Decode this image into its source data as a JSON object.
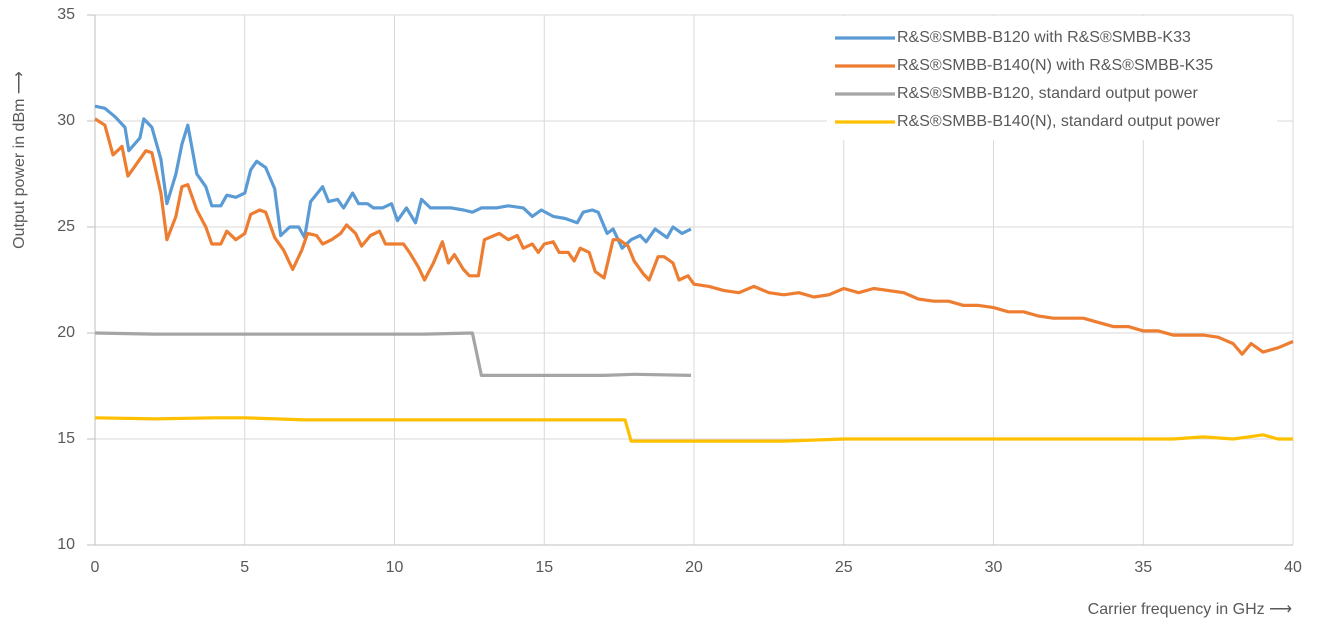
{
  "chart_data": {
    "type": "line",
    "y_label": "Output power in dBm ⟶",
    "x_label": "Carrier frequency in GHz ⟶",
    "xlim": [
      0,
      40
    ],
    "xticks": [
      0,
      5,
      10,
      15,
      20,
      25,
      30,
      35,
      40
    ],
    "ylim": [
      10,
      35
    ],
    "yticks": [
      10,
      15,
      20,
      25,
      30,
      35
    ],
    "grid": true,
    "legend": "top-right",
    "series": [
      {
        "name": "R&S®SMBB-B120 with R&S®SMBB-K33",
        "color": "#5b9bd5",
        "x": [
          0,
          0.33,
          0.67,
          1.0,
          1.13,
          1.5,
          1.63,
          1.9,
          2.2,
          2.4,
          2.7,
          2.9,
          3.1,
          3.4,
          3.7,
          3.9,
          4.2,
          4.4,
          4.7,
          5.0,
          5.2,
          5.4,
          5.7,
          6.0,
          6.2,
          6.5,
          6.8,
          7.0,
          7.2,
          7.6,
          7.8,
          8.1,
          8.3,
          8.6,
          8.8,
          9.1,
          9.3,
          9.6,
          9.9,
          10.1,
          10.4,
          10.7,
          10.9,
          11.2,
          11.6,
          11.9,
          12.3,
          12.6,
          12.9,
          13.4,
          13.8,
          14.3,
          14.6,
          14.9,
          15.3,
          15.7,
          16.1,
          16.3,
          16.6,
          16.8,
          17.1,
          17.3,
          17.6,
          17.9,
          18.2,
          18.4,
          18.7,
          19.1,
          19.3,
          19.6,
          19.9
        ],
        "values": [
          30.7,
          30.6,
          30.2,
          29.7,
          28.6,
          29.2,
          30.1,
          29.7,
          28.2,
          26.1,
          27.5,
          28.9,
          29.8,
          27.5,
          26.9,
          26.0,
          26.0,
          26.5,
          26.4,
          26.6,
          27.7,
          28.1,
          27.8,
          26.8,
          24.6,
          25.0,
          25.0,
          24.5,
          26.2,
          26.9,
          26.2,
          26.3,
          25.9,
          26.6,
          26.1,
          26.1,
          25.9,
          25.9,
          26.1,
          25.3,
          25.9,
          25.2,
          26.3,
          25.9,
          25.9,
          25.9,
          25.8,
          25.7,
          25.9,
          25.9,
          26.0,
          25.9,
          25.5,
          25.8,
          25.5,
          25.4,
          25.2,
          25.7,
          25.8,
          25.7,
          24.7,
          24.9,
          24.0,
          24.4,
          24.6,
          24.3,
          24.9,
          24.5,
          25.0,
          24.7,
          24.9
        ]
      },
      {
        "name": "R&S®SMBB-B140(N) with R&S®SMBB-K35",
        "color": "#ed7d31",
        "x": [
          0,
          0.33,
          0.6,
          0.9,
          1.1,
          1.5,
          1.7,
          1.9,
          2.2,
          2.4,
          2.7,
          2.9,
          3.1,
          3.4,
          3.7,
          3.9,
          4.2,
          4.4,
          4.7,
          5.0,
          5.2,
          5.5,
          5.7,
          6.0,
          6.3,
          6.6,
          6.9,
          7.1,
          7.4,
          7.6,
          7.9,
          8.2,
          8.4,
          8.7,
          8.9,
          9.2,
          9.5,
          9.7,
          10.0,
          10.3,
          10.5,
          10.8,
          11.0,
          11.3,
          11.6,
          11.8,
          12.0,
          12.3,
          12.5,
          12.8,
          13.0,
          13.5,
          13.8,
          14.1,
          14.3,
          14.6,
          14.8,
          15.0,
          15.3,
          15.5,
          15.8,
          16.0,
          16.2,
          16.5,
          16.7,
          17.0,
          17.3,
          17.5,
          17.8,
          18.0,
          18.3,
          18.5,
          18.8,
          19.0,
          19.3,
          19.5,
          19.8,
          20.0,
          20.5,
          21,
          21.5,
          22,
          22.5,
          23,
          23.5,
          24,
          24.5,
          25,
          25.5,
          26,
          26.5,
          27,
          27.5,
          28,
          28.5,
          29,
          29.5,
          30,
          30.5,
          31,
          31.5,
          32,
          32.5,
          33,
          33.5,
          34,
          34.5,
          35,
          35.5,
          36,
          36.5,
          37,
          37.5,
          38,
          38.3,
          38.6,
          39,
          39.5,
          40
        ],
        "values": [
          30.1,
          29.8,
          28.4,
          28.8,
          27.4,
          28.2,
          28.6,
          28.5,
          26.6,
          24.4,
          25.5,
          26.9,
          27.0,
          25.8,
          25.0,
          24.2,
          24.2,
          24.8,
          24.4,
          24.7,
          25.6,
          25.8,
          25.7,
          24.5,
          23.9,
          23.0,
          23.9,
          24.7,
          24.6,
          24.2,
          24.4,
          24.7,
          25.1,
          24.7,
          24.1,
          24.6,
          24.8,
          24.2,
          24.2,
          24.2,
          23.8,
          23.1,
          22.5,
          23.3,
          24.3,
          23.3,
          23.7,
          23.0,
          22.7,
          22.7,
          24.4,
          24.7,
          24.4,
          24.6,
          24.0,
          24.2,
          23.8,
          24.2,
          24.3,
          23.8,
          23.8,
          23.4,
          24.0,
          23.8,
          22.9,
          22.6,
          24.4,
          24.4,
          24.1,
          23.4,
          22.8,
          22.5,
          23.6,
          23.6,
          23.3,
          22.5,
          22.7,
          22.3,
          22.2,
          22.0,
          21.9,
          22.2,
          21.9,
          21.8,
          21.9,
          21.7,
          21.8,
          22.1,
          21.9,
          22.1,
          22.0,
          21.9,
          21.6,
          21.5,
          21.5,
          21.3,
          21.3,
          21.2,
          21.0,
          21.0,
          20.8,
          20.7,
          20.7,
          20.7,
          20.5,
          20.3,
          20.3,
          20.1,
          20.1,
          19.9,
          19.9,
          19.9,
          19.8,
          19.5,
          19.0,
          19.5,
          19.1,
          19.3,
          19.6
        ]
      },
      {
        "name": "R&S®SMBB-B120, standard output power",
        "color": "#a5a5a5",
        "x": [
          0,
          2,
          4,
          5,
          7,
          9,
          10,
          11,
          12.6,
          12.9,
          14,
          15,
          17,
          18,
          19.9
        ],
        "values": [
          20.0,
          19.95,
          19.95,
          19.95,
          19.95,
          19.95,
          19.95,
          19.95,
          20.0,
          18.0,
          18.0,
          18.0,
          18.0,
          18.05,
          18.0
        ]
      },
      {
        "name": "R&S®SMBB-B140(N), standard output power",
        "color": "#ffc000",
        "x": [
          0,
          2,
          4,
          5,
          7,
          10,
          12,
          15,
          16.5,
          17.7,
          17.9,
          20,
          23,
          25,
          28,
          30,
          33,
          35,
          36,
          37,
          38,
          38.5,
          39,
          39.5,
          40
        ],
        "values": [
          16.0,
          15.95,
          16.0,
          16.0,
          15.9,
          15.9,
          15.9,
          15.9,
          15.9,
          15.9,
          14.9,
          14.9,
          14.9,
          15.0,
          15.0,
          15.0,
          15.0,
          15.0,
          15.0,
          15.1,
          15.0,
          15.1,
          15.2,
          15.0,
          15.0
        ]
      }
    ]
  }
}
